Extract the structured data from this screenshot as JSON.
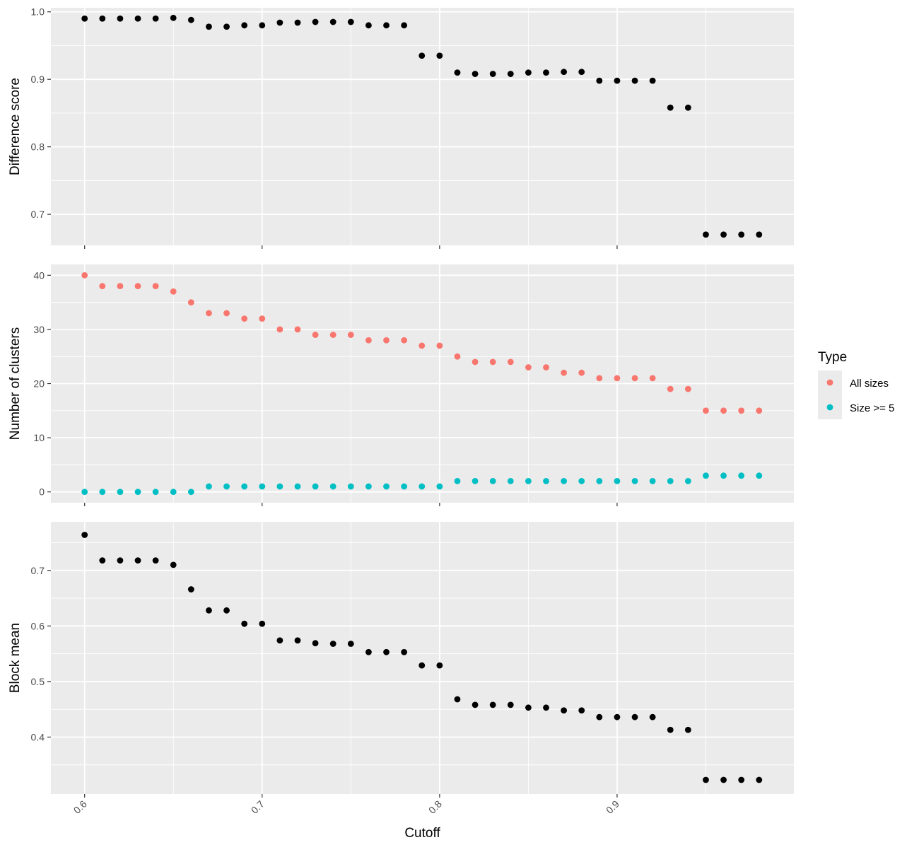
{
  "chart_data": {
    "type": "scatter",
    "layout": "faceted-vertical",
    "x": [
      0.6,
      0.61,
      0.62,
      0.63,
      0.64,
      0.65,
      0.66,
      0.67,
      0.68,
      0.69,
      0.7,
      0.71,
      0.72,
      0.73,
      0.74,
      0.75,
      0.76,
      0.77,
      0.78,
      0.79,
      0.8,
      0.81,
      0.82,
      0.83,
      0.84,
      0.85,
      0.86,
      0.87,
      0.88,
      0.89,
      0.9,
      0.91,
      0.92,
      0.93,
      0.94,
      0.95,
      0.96,
      0.97,
      0.98
    ],
    "xlabel": "Cutoff",
    "xlim": [
      0.581,
      0.9996
    ],
    "x_ticks": [
      0.6,
      0.7,
      0.8,
      0.9
    ],
    "x_tick_labels": [
      "0.6",
      "0.7",
      "0.8",
      "0.9"
    ],
    "x_tick_label_rotation_deg": -45,
    "grid": true,
    "panels": [
      {
        "ylabel": "Difference score",
        "ylim": [
          0.654,
          1.006
        ],
        "y_ticks": [
          0.7,
          0.8,
          0.9,
          1.0
        ],
        "y_tick_labels": [
          "0.7",
          "0.8",
          "0.9",
          "1.0"
        ],
        "series": [
          {
            "values": [
              0.99,
              0.99,
              0.99,
              0.99,
              0.99,
              0.991,
              0.988,
              0.978,
              0.978,
              0.98,
              0.98,
              0.984,
              0.984,
              0.985,
              0.985,
              0.985,
              0.98,
              0.98,
              0.98,
              0.935,
              0.935,
              0.91,
              0.908,
              0.908,
              0.908,
              0.91,
              0.91,
              0.911,
              0.911,
              0.898,
              0.898,
              0.898,
              0.898,
              0.858,
              0.858,
              0.67,
              0.67,
              0.67,
              0.67
            ],
            "color": "#000000"
          }
        ]
      },
      {
        "ylabel": "Number of clusters",
        "ylim": [
          -2,
          42
        ],
        "y_ticks": [
          0,
          10,
          20,
          30,
          40
        ],
        "y_tick_labels": [
          "0",
          "10",
          "20",
          "30",
          "40"
        ],
        "series": [
          {
            "name": "All sizes",
            "values": [
              40,
              38,
              38,
              38,
              38,
              37,
              35,
              33,
              33,
              32,
              32,
              30,
              30,
              29,
              29,
              29,
              28,
              28,
              28,
              27,
              27,
              25,
              24,
              24,
              24,
              23,
              23,
              22,
              22,
              21,
              21,
              21,
              21,
              19,
              19,
              15,
              15,
              15,
              15
            ],
            "color": "#F8766D"
          },
          {
            "name": "Size >= 5",
            "values": [
              0,
              0,
              0,
              0,
              0,
              0,
              0,
              1,
              1,
              1,
              1,
              1,
              1,
              1,
              1,
              1,
              1,
              1,
              1,
              1,
              1,
              2,
              2,
              2,
              2,
              2,
              2,
              2,
              2,
              2,
              2,
              2,
              2,
              2,
              2,
              3,
              3,
              3,
              3
            ],
            "color": "#00BFC4"
          }
        ]
      },
      {
        "ylabel": "Block mean",
        "ylim": [
          0.2975,
          0.7875
        ],
        "y_ticks": [
          0.4,
          0.5,
          0.6,
          0.7
        ],
        "y_tick_labels": [
          "0.4",
          "0.5",
          "0.6",
          "0.7"
        ],
        "series": [
          {
            "values": [
              0.764,
              0.718,
              0.718,
              0.718,
              0.718,
              0.71,
              0.666,
              0.628,
              0.628,
              0.604,
              0.604,
              0.574,
              0.574,
              0.569,
              0.568,
              0.568,
              0.553,
              0.553,
              0.553,
              0.529,
              0.529,
              0.468,
              0.458,
              0.458,
              0.458,
              0.453,
              0.453,
              0.448,
              0.448,
              0.436,
              0.436,
              0.436,
              0.436,
              0.413,
              0.413,
              0.323,
              0.323,
              0.323,
              0.323
            ],
            "color": "#000000"
          }
        ]
      }
    ],
    "legend": {
      "title": "Type",
      "placement": "right",
      "entries": [
        {
          "label": "All sizes",
          "color": "#F8766D"
        },
        {
          "label": "Size >= 5",
          "color": "#00BFC4"
        }
      ]
    },
    "colors": {
      "panel_background": "#EBEBEB",
      "grid_major": "#FFFFFF",
      "axis_text": "#4D4D4D"
    }
  }
}
